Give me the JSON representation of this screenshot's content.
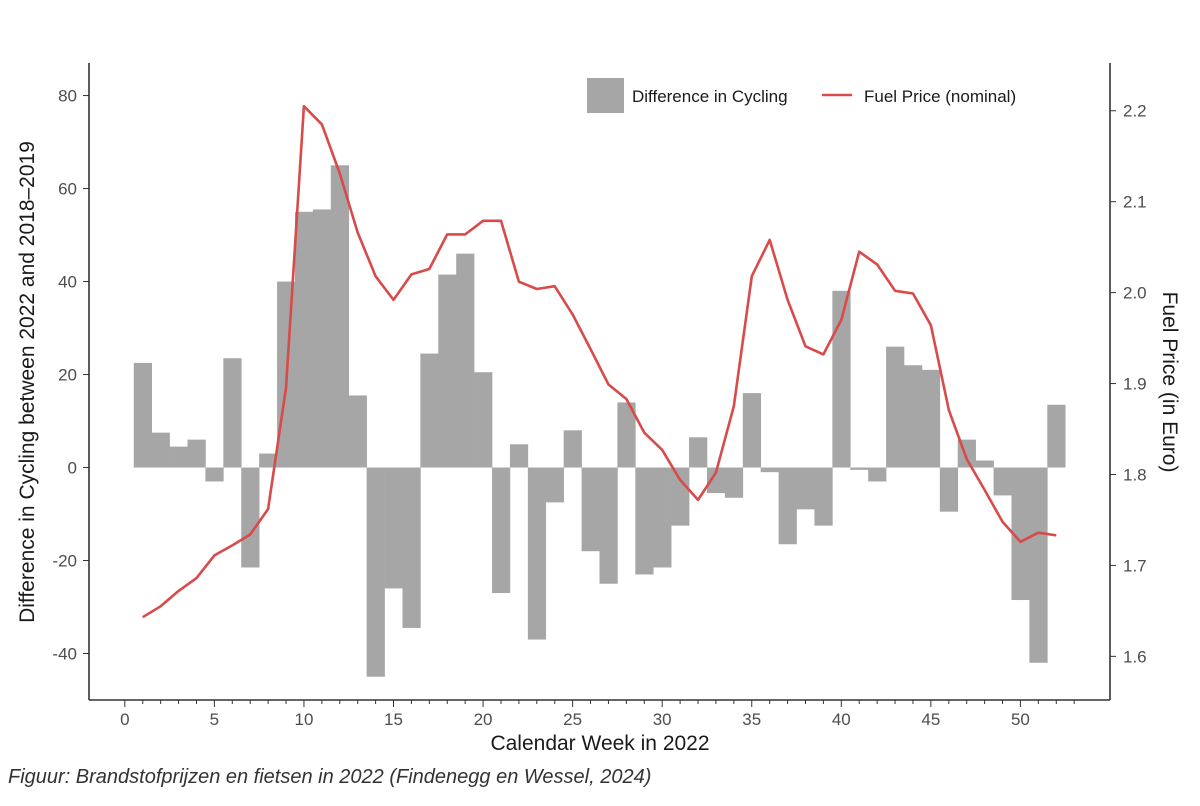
{
  "caption": "Figuur: Brandstofprijzen en fietsen in 2022 (Findenegg en Wessel, 2024)",
  "chart_data": {
    "type": "bar",
    "title": "",
    "xlabel": "Calendar Week in 2022",
    "ylabel": "Difference in Cycling between 2022 and 2018–2019",
    "y2label": "Fuel Price (in Euro)",
    "xlim": [
      -2,
      55
    ],
    "ylim": [
      -50,
      87
    ],
    "y2lim": [
      1.552,
      2.2525
    ],
    "x_ticks": [
      0,
      5,
      10,
      15,
      20,
      25,
      30,
      35,
      40,
      45,
      50
    ],
    "y_ticks": [
      -40,
      -20,
      0,
      20,
      40,
      60,
      80
    ],
    "y2_ticks": [
      "1.6",
      "1.7",
      "1.8",
      "1.9",
      "2.0",
      "2.1",
      "2.2"
    ],
    "legend": {
      "position": "top-right",
      "bar_label": "Difference in Cycling",
      "line_label": "Fuel Price (nominal)"
    },
    "colors": {
      "bar": "#a6a6a6",
      "line": "#d94a4a",
      "axis": "#333333"
    },
    "series": [
      {
        "name": "Difference in Cycling",
        "type": "bar",
        "weeks": [
          1,
          2,
          3,
          4,
          5,
          6,
          7,
          8,
          9,
          10,
          11,
          12,
          13,
          14,
          15,
          16,
          17,
          18,
          19,
          20,
          21,
          22,
          23,
          24,
          25,
          26,
          27,
          28,
          29,
          30,
          31,
          32,
          33,
          34,
          35,
          36,
          37,
          38,
          39,
          40,
          41,
          42,
          43,
          44,
          45,
          46,
          47,
          48,
          49,
          50,
          51,
          52
        ],
        "values": [
          22.5,
          7.5,
          4.5,
          6,
          -3,
          23.5,
          -21.5,
          3,
          40,
          55,
          55.5,
          65,
          15.5,
          -45,
          -26,
          -34.5,
          24.5,
          41.5,
          46,
          20.5,
          -27,
          5,
          -37,
          -7.5,
          8,
          -18,
          -25,
          14,
          -23,
          -21.5,
          -12.5,
          6.5,
          -5.5,
          -6.5,
          16,
          -1,
          -16.5,
          -9,
          -12.5,
          38,
          -0.5,
          -3,
          26,
          22,
          21,
          -9.5,
          6,
          1.5,
          -6,
          -28.5,
          -42,
          13.5
        ]
      },
      {
        "name": "Fuel Price (nominal)",
        "type": "line",
        "weeks": [
          1,
          2,
          3,
          4,
          5,
          6,
          7,
          8,
          9,
          10,
          11,
          12,
          13,
          14,
          15,
          16,
          17,
          18,
          19,
          20,
          21,
          22,
          23,
          24,
          25,
          26,
          27,
          28,
          29,
          30,
          31,
          32,
          33,
          34,
          35,
          36,
          37,
          38,
          39,
          40,
          41,
          42,
          43,
          44,
          45,
          46,
          47,
          48,
          49,
          50,
          51,
          52
        ],
        "values": [
          1.643,
          1.655,
          1.672,
          1.686,
          1.711,
          1.722,
          1.734,
          1.762,
          1.895,
          2.205,
          2.185,
          2.131,
          2.066,
          2.018,
          1.992,
          2.02,
          2.026,
          2.064,
          2.064,
          2.079,
          2.079,
          2.012,
          2.004,
          2.007,
          1.976,
          1.938,
          1.899,
          1.883,
          1.846,
          1.827,
          1.794,
          1.772,
          1.802,
          1.875,
          2.018,
          2.058,
          1.992,
          1.941,
          1.932,
          1.97,
          2.045,
          2.031,
          2.002,
          1.999,
          1.964,
          1.871,
          1.817,
          1.783,
          1.748,
          1.726,
          1.736,
          1.733
        ]
      }
    ]
  }
}
